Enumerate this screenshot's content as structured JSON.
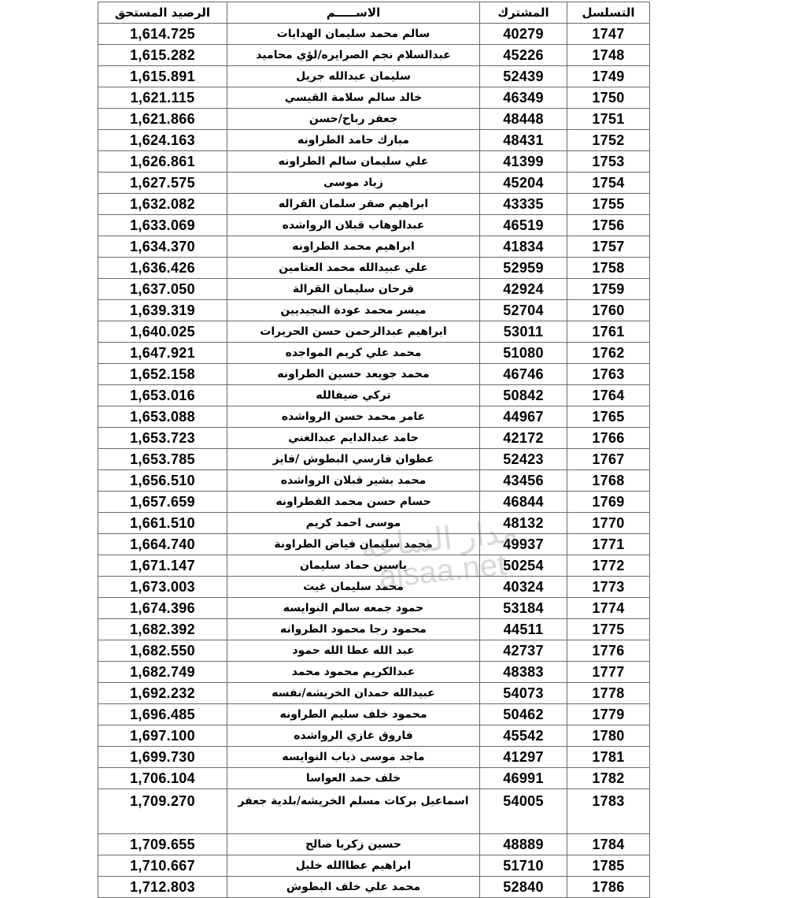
{
  "headers": {
    "serial": "التسلسل",
    "subscriber": "المشترك",
    "name": "الاســـــم",
    "balance": "الرصيد المستحق"
  },
  "watermark": {
    "line1": "مدار الساعة",
    "line2": "alsaa.net"
  },
  "rows": [
    {
      "serial": "1747",
      "subscriber": "40279",
      "name": "سالم محمد سليمان الهدايات",
      "balance": "1,614.725"
    },
    {
      "serial": "1748",
      "subscriber": "45226",
      "name": "عبدالسلام نجم الصرايره/لؤي محاميد",
      "balance": "1,615.282"
    },
    {
      "serial": "1749",
      "subscriber": "52439",
      "name": "سليمان عبدالله جريل",
      "balance": "1,615.891"
    },
    {
      "serial": "1750",
      "subscriber": "46349",
      "name": "خالد سالم سلامة القيسي",
      "balance": "1,621.115"
    },
    {
      "serial": "1751",
      "subscriber": "48448",
      "name": "جعفر رباح/حسن",
      "balance": "1,621.866"
    },
    {
      "serial": "1752",
      "subscriber": "48431",
      "name": "مبارك حامد الطراونه",
      "balance": "1,624.163"
    },
    {
      "serial": "1753",
      "subscriber": "41399",
      "name": "علي سليمان سالم الطراونه",
      "balance": "1,626.861"
    },
    {
      "serial": "1754",
      "subscriber": "45204",
      "name": "زياد موسى",
      "balance": "1,627.575"
    },
    {
      "serial": "1755",
      "subscriber": "43335",
      "name": "ابراهيم صقر سلمان القراله",
      "balance": "1,632.082"
    },
    {
      "serial": "1756",
      "subscriber": "46519",
      "name": "عبدالوهاب قبلان الرواشده",
      "balance": "1,633.069"
    },
    {
      "serial": "1757",
      "subscriber": "41834",
      "name": "ابراهيم محمد الطراونه",
      "balance": "1,634.370"
    },
    {
      "serial": "1758",
      "subscriber": "52959",
      "name": "علي عبيدالله محمد  العتامين",
      "balance": "1,636.426"
    },
    {
      "serial": "1759",
      "subscriber": "42924",
      "name": "فرحان سليمان القرالة",
      "balance": "1,637.050"
    },
    {
      "serial": "1760",
      "subscriber": "52704",
      "name": "ميسر محمد عودة النجيديين",
      "balance": "1,639.319"
    },
    {
      "serial": "1761",
      "subscriber": "53011",
      "name": "ابراهيم عبدالرحمن حسن الحريرات",
      "balance": "1,640.025"
    },
    {
      "serial": "1762",
      "subscriber": "51080",
      "name": "محمد علي كريم المواجده",
      "balance": "1,647.921"
    },
    {
      "serial": "1763",
      "subscriber": "46746",
      "name": "محمد جويعد حسين الطراونه",
      "balance": "1,652.158"
    },
    {
      "serial": "1764",
      "subscriber": "50842",
      "name": "تركي ضيفالله",
      "balance": "1,653.016"
    },
    {
      "serial": "1765",
      "subscriber": "44967",
      "name": "عامر محمد حسن الرواشده",
      "balance": "1,653.088"
    },
    {
      "serial": "1766",
      "subscriber": "42172",
      "name": "حامد عبدالدايم عبدالغني",
      "balance": "1,653.723"
    },
    {
      "serial": "1767",
      "subscriber": "52423",
      "name": "عطوان فارسي البطوش /فايز",
      "balance": "1,653.785"
    },
    {
      "serial": "1768",
      "subscriber": "43456",
      "name": "محمد بشير قبلان الرواشده",
      "balance": "1,656.510"
    },
    {
      "serial": "1769",
      "subscriber": "46844",
      "name": "حسام حسن محمد الفطراونه",
      "balance": "1,657.659"
    },
    {
      "serial": "1770",
      "subscriber": "48132",
      "name": "موسى احمد كريم",
      "balance": "1,661.510"
    },
    {
      "serial": "1771",
      "subscriber": "49937",
      "name": "محمد سليمان فياض الطراونة",
      "balance": "1,664.740"
    },
    {
      "serial": "1772",
      "subscriber": "50254",
      "name": "ياسين حماد سليمان",
      "balance": "1,671.147"
    },
    {
      "serial": "1773",
      "subscriber": "40324",
      "name": "محمد سليمان غيث",
      "balance": "1,673.003"
    },
    {
      "serial": "1774",
      "subscriber": "53184",
      "name": "حمود جمعه سالم النوايسه",
      "balance": "1,674.396"
    },
    {
      "serial": "1775",
      "subscriber": "44511",
      "name": "محمود رجا محمود الطروانه",
      "balance": "1,682.392"
    },
    {
      "serial": "1776",
      "subscriber": "42737",
      "name": "عبد الله عطا الله حمود",
      "balance": "1,682.550"
    },
    {
      "serial": "1777",
      "subscriber": "48383",
      "name": "عبدالكريم محمود محمد",
      "balance": "1,682.749"
    },
    {
      "serial": "1778",
      "subscriber": "54073",
      "name": "عبيدالله حمدان الخريشه/نفسه",
      "balance": "1,692.232"
    },
    {
      "serial": "1779",
      "subscriber": "50462",
      "name": "محمود خلف سليم الطراونه",
      "balance": "1,696.485"
    },
    {
      "serial": "1780",
      "subscriber": "45542",
      "name": "فاروق غازي الرواشده",
      "balance": "1,697.100"
    },
    {
      "serial": "1781",
      "subscriber": "41297",
      "name": "ماجد موسى ذياب النوايسه",
      "balance": "1,699.730"
    },
    {
      "serial": "1782",
      "subscriber": "46991",
      "name": "خلف حمد العواسا",
      "balance": "1,706.104"
    },
    {
      "serial": "1783",
      "subscriber": "54005",
      "name": "اسماعيل بركات مسلم الخريشه/بلدية جعفر",
      "balance": "1,709.270"
    },
    {
      "serial": "1784",
      "subscriber": "48889",
      "name": "حسين زكريا صالح",
      "balance": "1,709.655"
    },
    {
      "serial": "1785",
      "subscriber": "51710",
      "name": "ابراهيم عطاالله خليل",
      "balance": "1,710.667"
    },
    {
      "serial": "1786",
      "subscriber": "52840",
      "name": "محمد علي خلف البطوش",
      "balance": "1,712.803"
    }
  ]
}
